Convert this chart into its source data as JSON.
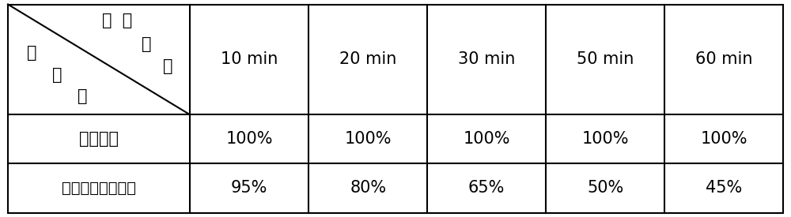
{
  "col_headers": [
    "10 min",
    "20 min",
    "30 min",
    "50 min",
    "60 min"
  ],
  "row_header_1": "三氧化鹨",
  "row_header_2": "纳米三氧化鹨颗粒",
  "data": [
    [
      "100%",
      "100%",
      "100%",
      "100%",
      "100%"
    ],
    [
      "95%",
      "80%",
      "65%",
      "50%",
      "45%"
    ]
  ],
  "diag_top_line1": "反  应",
  "diag_top_line2": "时",
  "diag_top_line3": "间",
  "diag_bot_line1": "催",
  "diag_bot_line2": "化",
  "diag_bot_line3": "剂",
  "background_color": "#ffffff",
  "border_color": "#000000",
  "text_color": "#000000",
  "font_size": 15,
  "fig_width": 10.0,
  "fig_height": 2.75
}
